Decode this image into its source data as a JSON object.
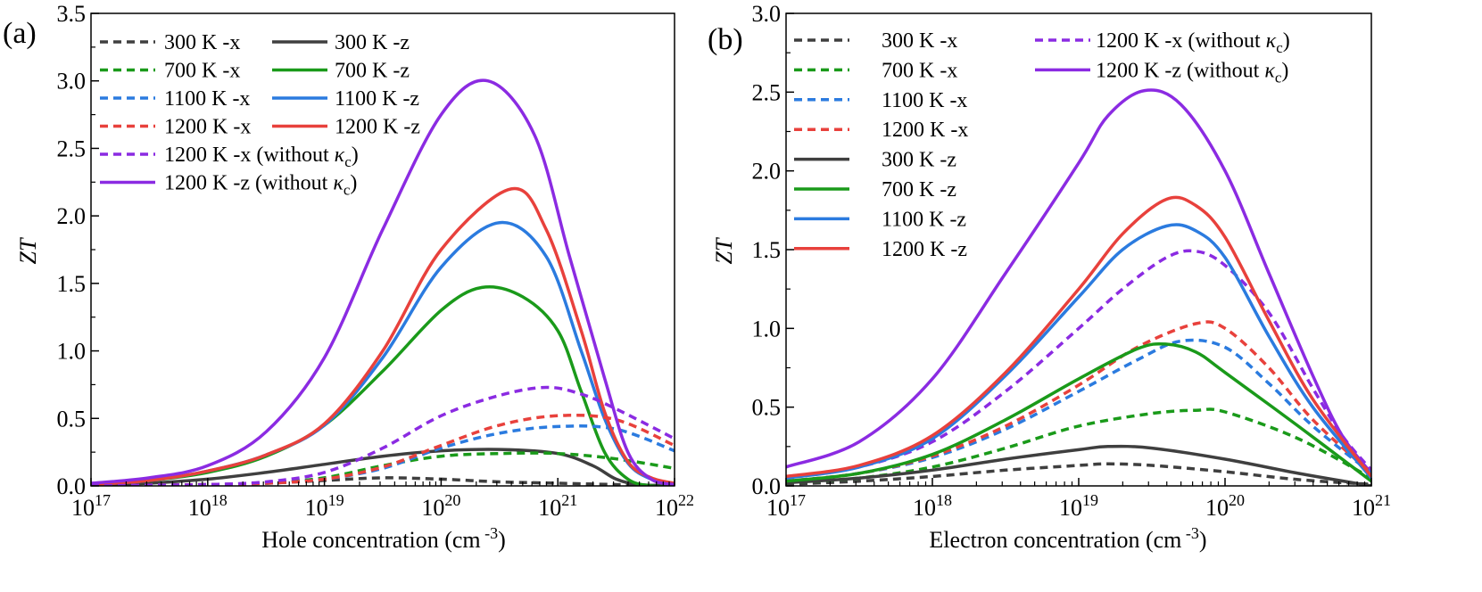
{
  "chart_data": [
    {
      "type": "line",
      "panel_label": "(a)",
      "xlabel": {
        "main": "Hole concentration (cm",
        "sup": " -3",
        "close": ")"
      },
      "ylabel": "ZT",
      "xscale": "log",
      "xlim_exp": [
        17,
        22
      ],
      "ylim": [
        0,
        3.5
      ],
      "x_tick_exponents": [
        17,
        18,
        19,
        20,
        21,
        22
      ],
      "x_tick_base": "10",
      "y_ticks": [
        0.0,
        0.5,
        1.0,
        1.5,
        2.0,
        2.5,
        3.0,
        3.5
      ],
      "y_tick_labels": [
        "0.0",
        "0.5",
        "1.0",
        "1.5",
        "2.0",
        "2.5",
        "3.0",
        "3.5"
      ],
      "legend_placement": "top-left, two columns",
      "series": [
        {
          "name": "300 K -x",
          "label_main": "300 K -x",
          "color": "#3f3f3f",
          "dash": true,
          "x_exp": [
            17,
            17.5,
            18,
            18.5,
            19,
            19.5,
            20,
            20.5,
            21,
            21.5,
            22
          ],
          "y": [
            0.0,
            0.005,
            0.01,
            0.02,
            0.04,
            0.06,
            0.05,
            0.03,
            0.02,
            0.01,
            0.0
          ]
        },
        {
          "name": "300 K -z",
          "label_main": "300 K -z",
          "color": "#3f3f3f",
          "dash": false,
          "x_exp": [
            17,
            17.5,
            18,
            18.5,
            19,
            19.5,
            20,
            20.5,
            21,
            21.3,
            21.5,
            21.7,
            22
          ],
          "y": [
            0.0,
            0.02,
            0.05,
            0.1,
            0.16,
            0.22,
            0.26,
            0.27,
            0.24,
            0.15,
            0.05,
            0.01,
            0.0
          ]
        },
        {
          "name": "700 K -x",
          "label_main": "700 K -x",
          "color": "#1a9a1a",
          "dash": true,
          "x_exp": [
            17,
            17.5,
            18,
            18.5,
            19,
            19.5,
            20,
            20.5,
            21,
            21.5,
            22
          ],
          "y": [
            0.0,
            0.005,
            0.01,
            0.02,
            0.06,
            0.15,
            0.22,
            0.24,
            0.24,
            0.2,
            0.13
          ]
        },
        {
          "name": "700 K -z",
          "label_main": "700 K -z",
          "color": "#1a9a1a",
          "dash": false,
          "x_exp": [
            17,
            17.5,
            18,
            18.5,
            19,
            19.5,
            20,
            20.35,
            20.7,
            21,
            21.2,
            21.4,
            21.6,
            21.8,
            22
          ],
          "y": [
            0.01,
            0.04,
            0.1,
            0.22,
            0.45,
            0.85,
            1.3,
            1.47,
            1.4,
            1.15,
            0.7,
            0.25,
            0.05,
            0.0,
            0.0
          ]
        },
        {
          "name": "1100 K -x",
          "label_main": "1100 K -x",
          "color": "#2b7bdf",
          "dash": true,
          "x_exp": [
            17,
            17.5,
            18,
            18.5,
            19,
            19.5,
            20,
            20.5,
            21,
            21.5,
            22
          ],
          "y": [
            0.0,
            0.005,
            0.01,
            0.02,
            0.05,
            0.13,
            0.28,
            0.39,
            0.44,
            0.42,
            0.26
          ]
        },
        {
          "name": "1100 K -z",
          "label_main": "1100 K -z",
          "color": "#2b7bdf",
          "dash": false,
          "x_exp": [
            17,
            17.5,
            18,
            18.5,
            19,
            19.5,
            20,
            20.5,
            20.9,
            21.2,
            21.4,
            21.6,
            21.8,
            22
          ],
          "y": [
            0.01,
            0.04,
            0.11,
            0.23,
            0.45,
            0.95,
            1.62,
            1.95,
            1.7,
            1.0,
            0.5,
            0.17,
            0.05,
            0.02
          ]
        },
        {
          "name": "1200 K -x",
          "label_main": "1200 K -x",
          "color": "#e8413c",
          "dash": true,
          "x_exp": [
            17,
            17.5,
            18,
            18.5,
            19,
            19.5,
            20,
            20.5,
            21,
            21.5,
            22
          ],
          "y": [
            0.0,
            0.005,
            0.01,
            0.02,
            0.05,
            0.14,
            0.3,
            0.45,
            0.52,
            0.49,
            0.3
          ]
        },
        {
          "name": "1200 K -z",
          "label_main": "1200 K -z",
          "color": "#e8413c",
          "dash": false,
          "x_exp": [
            17,
            17.5,
            18,
            18.5,
            19,
            19.5,
            20,
            20.6,
            20.9,
            21.2,
            21.4,
            21.6,
            21.8,
            22
          ],
          "y": [
            0.01,
            0.04,
            0.11,
            0.23,
            0.46,
            1.0,
            1.75,
            2.2,
            1.9,
            1.15,
            0.55,
            0.18,
            0.06,
            0.02
          ]
        },
        {
          "name": "1200 K -x (without κc)",
          "label_main": "1200 K -x (without ",
          "label_sym": "κ",
          "label_sub": "c",
          "label_close": ")",
          "color": "#8b2be2",
          "dash": true,
          "x_exp": [
            17,
            17.5,
            18,
            18.5,
            19,
            19.5,
            20,
            20.5,
            20.9,
            21.2,
            21.5,
            22
          ],
          "y": [
            0.0,
            0.005,
            0.01,
            0.03,
            0.1,
            0.28,
            0.52,
            0.67,
            0.73,
            0.68,
            0.57,
            0.35
          ]
        },
        {
          "name": "1200 K -z (without κc)",
          "label_main": "1200 K -z (without ",
          "label_sym": "κ",
          "label_sub": "c",
          "label_close": ")",
          "color": "#8b2be2",
          "dash": false,
          "x_exp": [
            17,
            17.5,
            18,
            18.5,
            19,
            19.5,
            20,
            20.4,
            20.8,
            21.1,
            21.4,
            21.6,
            21.8,
            22
          ],
          "y": [
            0.02,
            0.06,
            0.15,
            0.4,
            0.95,
            1.9,
            2.75,
            3.0,
            2.6,
            1.7,
            0.8,
            0.25,
            0.05,
            0.01
          ]
        }
      ]
    },
    {
      "type": "line",
      "panel_label": "(b)",
      "xlabel": {
        "main": "Electron concentration (cm",
        "sup": " -3",
        "close": ")"
      },
      "ylabel": "ZT",
      "xscale": "log",
      "xlim_exp": [
        17,
        21
      ],
      "ylim": [
        0,
        3.0
      ],
      "x_tick_exponents": [
        17,
        18,
        19,
        20,
        21
      ],
      "x_tick_base": "10",
      "y_ticks": [
        0.0,
        0.5,
        1.0,
        1.5,
        2.0,
        2.5,
        3.0
      ],
      "y_tick_labels": [
        "0.0",
        "0.5",
        "1.0",
        "1.5",
        "2.0",
        "2.5",
        "3.0"
      ],
      "legend_placement": "top-left, two columns",
      "series": [
        {
          "name": "300 K -x",
          "label_main": "300 K -x",
          "color": "#3f3f3f",
          "dash": true,
          "x_exp": [
            17,
            17.5,
            18,
            18.5,
            19,
            19.2,
            19.5,
            20,
            20.5,
            21
          ],
          "y": [
            0.01,
            0.03,
            0.06,
            0.1,
            0.13,
            0.14,
            0.13,
            0.09,
            0.04,
            0.01
          ]
        },
        {
          "name": "1200 K -x (without κc)",
          "label_main": "1200 K -x (without ",
          "label_sym": "κ",
          "label_sub": "c",
          "label_close": ")",
          "color": "#8b2be2",
          "dash": true,
          "x_exp": [
            17,
            17.5,
            18,
            18.5,
            19,
            19.3,
            19.6,
            19.8,
            20,
            20.3,
            20.6,
            20.8,
            21
          ],
          "y": [
            0.05,
            0.12,
            0.28,
            0.6,
            1.0,
            1.25,
            1.45,
            1.49,
            1.4,
            1.1,
            0.62,
            0.32,
            0.1
          ]
        },
        {
          "name": "700 K -x",
          "label_main": "700 K -x",
          "color": "#1a9a1a",
          "dash": true,
          "x_exp": [
            17,
            17.5,
            18,
            18.5,
            19,
            19.5,
            19.8,
            20,
            20.5,
            21
          ],
          "y": [
            0.02,
            0.05,
            0.12,
            0.24,
            0.38,
            0.46,
            0.48,
            0.47,
            0.3,
            0.05
          ]
        },
        {
          "name": "1200 K -z (without κc)",
          "label_main": "1200 K -z (without ",
          "label_sym": "κ",
          "label_sub": "c",
          "label_close": ")",
          "color": "#8b2be2",
          "dash": false,
          "x_exp": [
            17,
            17.5,
            18,
            18.5,
            19,
            19.2,
            19.45,
            19.7,
            20,
            20.3,
            20.6,
            20.8,
            21
          ],
          "y": [
            0.12,
            0.28,
            0.68,
            1.35,
            2.05,
            2.35,
            2.51,
            2.42,
            2.0,
            1.35,
            0.7,
            0.32,
            0.08
          ]
        },
        {
          "name": "1100 K -x",
          "label_main": "1100 K -x",
          "color": "#2b7bdf",
          "dash": true,
          "x_exp": [
            17,
            17.5,
            18,
            18.5,
            19,
            19.4,
            19.7,
            20,
            20.3,
            20.6,
            21
          ],
          "y": [
            0.03,
            0.08,
            0.18,
            0.36,
            0.6,
            0.8,
            0.92,
            0.88,
            0.65,
            0.38,
            0.08
          ]
        },
        {
          "name": "1200 K -x",
          "label_main": "1200 K -x",
          "color": "#e8413c",
          "dash": true,
          "x_exp": [
            17,
            17.5,
            18,
            18.5,
            19,
            19.4,
            19.8,
            20,
            20.3,
            20.6,
            21
          ],
          "y": [
            0.03,
            0.08,
            0.19,
            0.38,
            0.64,
            0.88,
            1.03,
            1.0,
            0.75,
            0.42,
            0.08
          ]
        },
        {
          "name": "300 K -z",
          "label_main": "300 K -z",
          "color": "#3f3f3f",
          "dash": false,
          "x_exp": [
            17,
            17.5,
            18,
            18.5,
            19,
            19.2,
            19.5,
            20,
            20.5,
            21
          ],
          "y": [
            0.02,
            0.05,
            0.1,
            0.17,
            0.23,
            0.25,
            0.24,
            0.17,
            0.08,
            0.0
          ]
        },
        {
          "name": "700 K -z",
          "label_main": "700 K -z",
          "color": "#1a9a1a",
          "dash": false,
          "x_exp": [
            17,
            17.5,
            18,
            18.5,
            19,
            19.4,
            19.6,
            19.8,
            20,
            20.5,
            21
          ],
          "y": [
            0.03,
            0.08,
            0.2,
            0.42,
            0.68,
            0.87,
            0.9,
            0.85,
            0.72,
            0.38,
            0.03
          ]
        },
        {
          "name": "1100 K -z",
          "label_main": "1100 K -z",
          "color": "#2b7bdf",
          "dash": false,
          "x_exp": [
            17,
            17.5,
            18,
            18.5,
            19,
            19.3,
            19.6,
            19.8,
            20,
            20.3,
            20.6,
            21
          ],
          "y": [
            0.05,
            0.12,
            0.3,
            0.7,
            1.2,
            1.5,
            1.65,
            1.62,
            1.45,
            0.95,
            0.5,
            0.05
          ]
        },
        {
          "name": "1200 K -z",
          "label_main": "1200 K -z",
          "color": "#e8413c",
          "dash": false,
          "x_exp": [
            17,
            17.5,
            18,
            18.5,
            19,
            19.3,
            19.6,
            19.8,
            20,
            20.3,
            20.6,
            21
          ],
          "y": [
            0.06,
            0.13,
            0.32,
            0.72,
            1.25,
            1.6,
            1.82,
            1.78,
            1.58,
            1.05,
            0.55,
            0.06
          ]
        }
      ]
    }
  ]
}
